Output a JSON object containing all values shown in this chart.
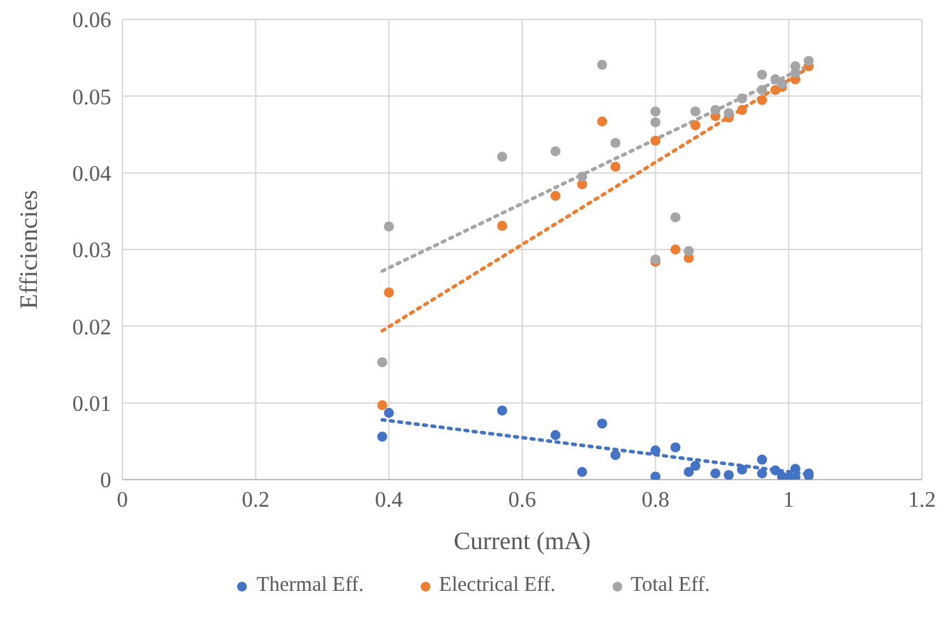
{
  "chart_data": {
    "type": "scatter",
    "xlabel": "Current (mA)",
    "ylabel": "Efficiencies",
    "xlim": [
      0,
      1.2
    ],
    "xticks": [
      0,
      0.2,
      0.4,
      0.6,
      0.8,
      1,
      1.2
    ],
    "ylim": [
      0,
      0.06
    ],
    "yticks": [
      0,
      0.01,
      0.02,
      0.03,
      0.04,
      0.05,
      0.06
    ],
    "grid": true,
    "legend": "bottom",
    "marker": "circle",
    "series": [
      {
        "name": "Thermal Eff.",
        "color": "#4472c4",
        "x": [
          0.39,
          0.4,
          0.57,
          0.65,
          0.69,
          0.72,
          0.74,
          0.8,
          0.8,
          0.83,
          0.85,
          0.86,
          0.89,
          0.91,
          0.93,
          0.96,
          0.96,
          0.98,
          0.99,
          1.0,
          1.01,
          1.01,
          1.03,
          1.03
        ],
        "values": [
          0.0056,
          0.0087,
          0.009,
          0.0058,
          0.001,
          0.0073,
          0.0032,
          0.0038,
          0.0004,
          0.0042,
          0.001,
          0.0018,
          0.0008,
          0.0006,
          0.0013,
          0.0026,
          0.0008,
          0.0012,
          0.0004,
          0.0003,
          0.0014,
          0.0003,
          0.0008,
          0.0005
        ]
      },
      {
        "name": "Electrical Eff.",
        "color": "#ed7d31",
        "x": [
          0.39,
          0.4,
          0.57,
          0.65,
          0.69,
          0.72,
          0.74,
          0.8,
          0.8,
          0.83,
          0.85,
          0.86,
          0.89,
          0.91,
          0.93,
          0.96,
          0.98,
          0.99,
          1.01,
          1.03
        ],
        "values": [
          0.0097,
          0.0244,
          0.0331,
          0.037,
          0.0385,
          0.0467,
          0.0408,
          0.0442,
          0.0284,
          0.03,
          0.0289,
          0.0462,
          0.0474,
          0.0472,
          0.0482,
          0.0495,
          0.0508,
          0.0512,
          0.0522,
          0.0539
        ]
      },
      {
        "name": "Total Eff.",
        "color": "#a5a5a5",
        "x": [
          0.39,
          0.4,
          0.57,
          0.65,
          0.69,
          0.72,
          0.74,
          0.8,
          0.8,
          0.8,
          0.83,
          0.85,
          0.86,
          0.89,
          0.91,
          0.93,
          0.96,
          0.96,
          0.98,
          0.99,
          1.01,
          1.01,
          1.03
        ],
        "values": [
          0.0153,
          0.033,
          0.0421,
          0.0428,
          0.0395,
          0.0541,
          0.0439,
          0.048,
          0.0466,
          0.0287,
          0.0342,
          0.0298,
          0.048,
          0.0482,
          0.0478,
          0.0497,
          0.0528,
          0.0508,
          0.0522,
          0.0516,
          0.0539,
          0.053,
          0.0546
        ]
      },
      {
        "type": "line",
        "marker": "none",
        "line_style": "dotted",
        "color": "#4472c4",
        "x": [
          0.39,
          1.03
        ],
        "values": [
          0.0078,
          0.0007
        ]
      },
      {
        "type": "line",
        "marker": "none",
        "line_style": "dotted",
        "color": "#ed7d31",
        "x": [
          0.39,
          1.03
        ],
        "values": [
          0.0194,
          0.0537
        ]
      },
      {
        "type": "line",
        "marker": "none",
        "line_style": "dotted",
        "color": "#a5a5a5",
        "x": [
          0.39,
          1.03
        ],
        "values": [
          0.0272,
          0.054
        ]
      }
    ]
  }
}
